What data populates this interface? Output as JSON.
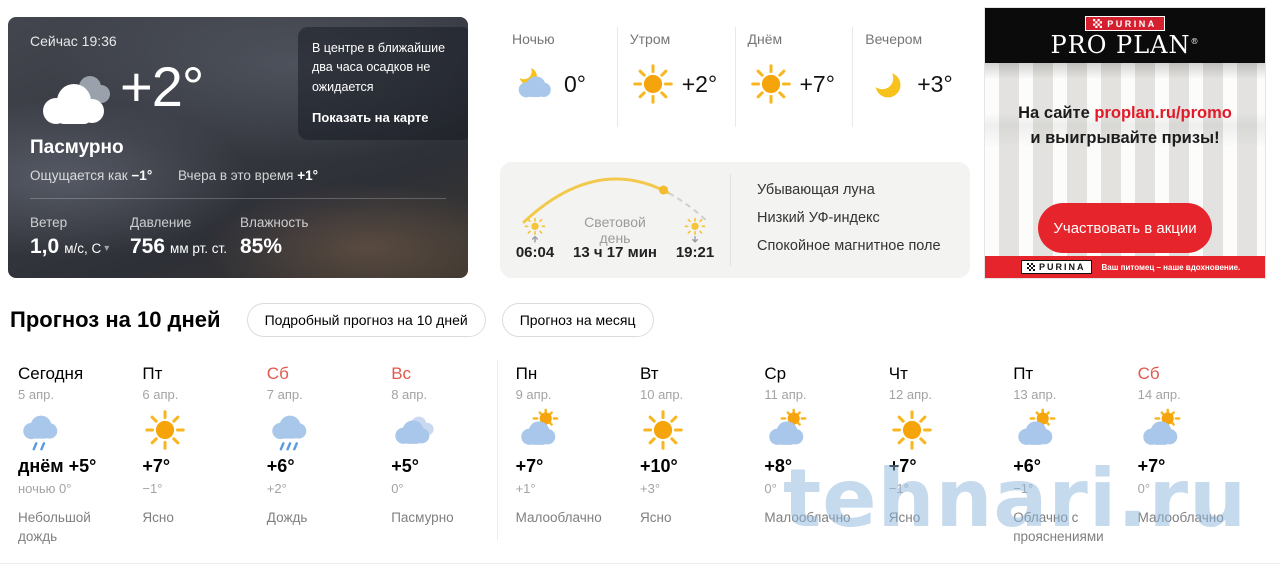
{
  "current": {
    "time_label": "Сейчас 19:36",
    "temp": "+2°",
    "condition": "Пасмурно",
    "condition_icon": "overcast-big",
    "feels_like_label": "Ощущается как",
    "feels_like_value": "−1°",
    "yesterday_label": "Вчера в это время",
    "yesterday_value": "+1°",
    "tooltip": {
      "text": "В центре в ближайшие два часа осадков не ожидается",
      "link": "Показать на карте"
    },
    "metrics": [
      {
        "label": "Ветер",
        "value": "1,0",
        "unit": "м/с, С",
        "caret": true
      },
      {
        "label": "Давление",
        "value": "756",
        "unit": "мм рт. ст.",
        "caret": false
      },
      {
        "label": "Влажность",
        "value": "85%",
        "unit": "",
        "caret": false
      }
    ]
  },
  "parts_of_day": [
    {
      "label": "Ночью",
      "temp": "0°",
      "icon": "moon-cloud"
    },
    {
      "label": "Утром",
      "temp": "+2°",
      "icon": "sun"
    },
    {
      "label": "Днём",
      "temp": "+7°",
      "icon": "sun"
    },
    {
      "label": "Вечером",
      "temp": "+3°",
      "icon": "moon"
    }
  ],
  "daylight": {
    "sunrise": "06:04",
    "sunset": "19:21",
    "label": "Световой день",
    "duration": "13 ч 17 мин",
    "facts": [
      "Убывающая луна",
      "Низкий УФ-индекс",
      "Спокойное магнитное поле"
    ]
  },
  "ad": {
    "brand_top": "PURINA",
    "brand_main": "PRO PLAN",
    "text_prefix": "На сайте ",
    "link": "proplan.ru/promo",
    "text_suffix": "и выигрывайте призы!",
    "button": "Участвовать в акции",
    "footer_brand": "PURINA",
    "footer_tagline": "Ваш питомец – наше вдохновение.",
    "accent": "#e6242b"
  },
  "forecast": {
    "title": "Прогноз на 10 дней",
    "buttons": [
      "Подробный прогноз на 10 дней",
      "Прогноз на месяц"
    ],
    "days": [
      {
        "name": "Сегодня",
        "date": "5 апр.",
        "icon": "rain-light",
        "day_prefix": "днём ",
        "day": "+5°",
        "night_prefix": "ночью ",
        "night": "0°",
        "cond": "Небольшой дождь",
        "red": false
      },
      {
        "name": "Пт",
        "date": "6 апр.",
        "icon": "sun",
        "day": "+7°",
        "night": "−1°",
        "cond": "Ясно",
        "red": false
      },
      {
        "name": "Сб",
        "date": "7 апр.",
        "icon": "rain",
        "day": "+6°",
        "night": "+2°",
        "cond": "Дождь",
        "red": true
      },
      {
        "name": "Вс",
        "date": "8 апр.",
        "icon": "cloudy",
        "day": "+5°",
        "night": "0°",
        "cond": "Пасмурно",
        "red": true
      },
      {
        "name": "Пн",
        "date": "9 апр.",
        "icon": "sun-cloud",
        "day": "+7°",
        "night": "+1°",
        "cond": "Малооблачно",
        "red": false
      },
      {
        "name": "Вт",
        "date": "10 апр.",
        "icon": "sun",
        "day": "+10°",
        "night": "+3°",
        "cond": "Ясно",
        "red": false
      },
      {
        "name": "Ср",
        "date": "11 апр.",
        "icon": "sun-cloud",
        "day": "+8°",
        "night": "0°",
        "cond": "Малооблачно",
        "red": false
      },
      {
        "name": "Чт",
        "date": "12 апр.",
        "icon": "sun",
        "day": "+7°",
        "night": "−1°",
        "cond": "Ясно",
        "red": false
      },
      {
        "name": "Пт",
        "date": "13 апр.",
        "icon": "sun-cloud",
        "day": "+6°",
        "night": "−1°",
        "cond": "Облачно с прояснениями",
        "red": false
      },
      {
        "name": "Сб",
        "date": "14 апр.",
        "icon": "sun-cloud",
        "day": "+7°",
        "night": "0°",
        "cond": "Малооблачно",
        "red": true
      }
    ]
  },
  "watermark": "tehnari.ru"
}
